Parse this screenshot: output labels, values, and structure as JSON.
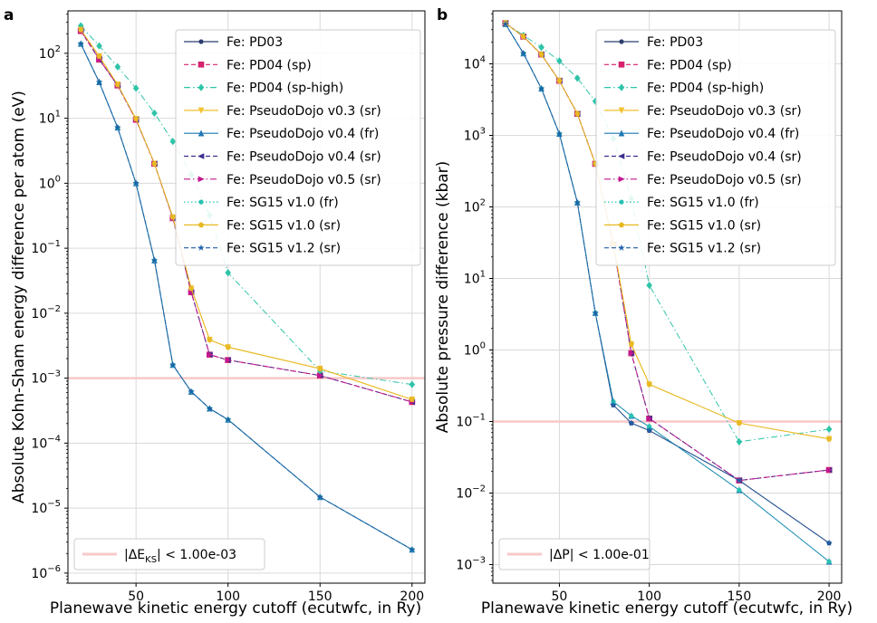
{
  "chart_data": [
    {
      "type": "line",
      "panel_letter": "a",
      "xlabel": "Planewave kinetic energy cutoff (ecutwfc, in Ry)",
      "ylabel": "Absolute Kohn-Sham energy difference per atom (eV)",
      "yscale": "log",
      "xlim": [
        13,
        207
      ],
      "ylim": [
        7e-07,
        450
      ],
      "x_ticks": [
        "50",
        "100",
        "150",
        "200"
      ],
      "y_ticks": [
        "10^-6",
        "10^-5",
        "10^-4",
        "10^-3",
        "10^-2",
        "10^-1",
        "10^0",
        "10^1",
        "10^2"
      ],
      "grid": true,
      "legend_position": "top-right",
      "threshold": {
        "value": 0.001,
        "label_pre": "|ΔE",
        "label_sub": "KS",
        "label_post": "| < 1.00e-03",
        "legend_position": "bottom-left",
        "color": "#f8c8c8"
      },
      "x": [
        20,
        30,
        40,
        50,
        60,
        70,
        80,
        90,
        100,
        150,
        200
      ],
      "series": [
        {
          "name": "Fe: PD03",
          "color": "#2c3e6e",
          "marker": "circle",
          "dash": "solid",
          "values": [
            140,
            36,
            7.2,
            1.0,
            0.065,
            0.0016,
            0.00062,
            0.00034,
            0.00023,
            1.48e-05,
            2.3e-06
          ]
        },
        {
          "name": "Fe: PD04 (sp)",
          "color": "#d6226e",
          "marker": "square",
          "dash": "dashed",
          "values": [
            220,
            80,
            32,
            9.5,
            2.0,
            0.29,
            0.021,
            0.0023,
            0.0019,
            0.0011,
            0.00043
          ]
        },
        {
          "name": "Fe: PD04 (sp-high)",
          "color": "#2ec4a8",
          "marker": "diamond",
          "dash": "dashdot",
          "values": [
            265,
            130,
            62,
            29,
            12,
            4.4,
            1.35,
            0.32,
            0.042,
            0.0013,
            0.0008
          ]
        },
        {
          "name": "Fe: PseudoDojo v0.3 (sr)",
          "color": "#f2c12e",
          "marker": "triangle-down",
          "dash": "solid",
          "values": [
            230,
            90,
            33,
            9.8,
            2.0,
            0.3,
            0.024,
            0.0039,
            0.003,
            0.0014,
            0.00047
          ]
        },
        {
          "name": "Fe: PseudoDojo v0.4 (fr)",
          "color": "#1f77b4",
          "marker": "triangle-up",
          "dash": "solid",
          "values": [
            140,
            36,
            7.2,
            1.0,
            0.065,
            0.0016,
            0.00062,
            0.00034,
            0.00023,
            1.48e-05,
            2.3e-06
          ]
        },
        {
          "name": "Fe: PseudoDojo v0.4 (sr)",
          "color": "#3b2f8f",
          "marker": "triangle-left",
          "dash": "dashed",
          "values": [
            225,
            82,
            32,
            9.6,
            2.0,
            0.29,
            0.021,
            0.0023,
            0.0019,
            0.0011,
            0.00043
          ]
        },
        {
          "name": "Fe: PseudoDojo v0.5 (sr)",
          "color": "#c2188f",
          "marker": "triangle-right",
          "dash": "dashdot",
          "values": [
            222,
            81,
            32,
            9.5,
            2.0,
            0.29,
            0.021,
            0.0023,
            0.0019,
            0.0011,
            0.00043
          ]
        },
        {
          "name": "Fe: SG15 v1.0 (fr)",
          "color": "#29c2b4",
          "marker": "circle",
          "dash": "dotted",
          "values": [
            140,
            36,
            7.2,
            1.0,
            0.065,
            0.0016,
            0.00062,
            0.00034,
            0.00023,
            1.48e-05,
            2.3e-06
          ]
        },
        {
          "name": "Fe: SG15 v1.0 (sr)",
          "color": "#e8b923",
          "marker": "pentagon",
          "dash": "solid",
          "values": [
            230,
            90,
            33,
            9.8,
            2.0,
            0.3,
            0.024,
            0.0039,
            0.003,
            0.0014,
            0.00047
          ]
        },
        {
          "name": "Fe: SG15 v1.2 (sr)",
          "color": "#1f5fa8",
          "marker": "star",
          "dash": "dashed",
          "values": [
            140,
            36,
            7.2,
            1.0,
            0.065,
            0.0016,
            0.00062,
            0.00034,
            0.00023,
            1.48e-05,
            2.3e-06
          ]
        }
      ]
    },
    {
      "type": "line",
      "panel_letter": "b",
      "xlabel": "Planewave kinetic energy cutoff (ecutwfc, in Ry)",
      "ylabel": "Absolute pressure difference (kbar)",
      "yscale": "log",
      "xlim": [
        13,
        207
      ],
      "ylim": [
        0.00055,
        55000
      ],
      "x_ticks": [
        "50",
        "100",
        "150",
        "200"
      ],
      "y_ticks": [
        "10^-3",
        "10^-2",
        "10^-1",
        "10^0",
        "10^1",
        "10^2",
        "10^3",
        "10^4"
      ],
      "grid": true,
      "legend_position": "top-right",
      "threshold": {
        "value": 0.1,
        "label_pre": "|ΔP",
        "label_sub": "",
        "label_post": "| < 1.00e-01",
        "legend_position": "bottom-left",
        "color": "#f8c8c8"
      },
      "x": [
        20,
        30,
        40,
        50,
        60,
        70,
        80,
        90,
        100,
        150,
        200
      ],
      "series": [
        {
          "name": "Fe: PD03",
          "color": "#2c3e6e",
          "marker": "circle",
          "dash": "solid",
          "values": [
            36000,
            14000,
            4500,
            1050,
            115,
            3.3,
            0.17,
            0.095,
            0.075,
            0.015,
            0.002
          ]
        },
        {
          "name": "Fe: PD04 (sp)",
          "color": "#d6226e",
          "marker": "square",
          "dash": "dashed",
          "values": [
            37000,
            24000,
            13500,
            5800,
            2000,
            400,
            30,
            0.9,
            0.11,
            0.015,
            0.021
          ]
        },
        {
          "name": "Fe: PD04 (sp-high)",
          "color": "#2ec4a8",
          "marker": "diamond",
          "dash": "dashdot",
          "values": [
            37000,
            25000,
            17000,
            11000,
            6300,
            3000,
            900,
            130,
            8,
            0.052,
            0.078
          ]
        },
        {
          "name": "Fe: PseudoDojo v0.3 (sr)",
          "color": "#f2c12e",
          "marker": "triangle-down",
          "dash": "solid",
          "values": [
            37000,
            24000,
            13500,
            5800,
            2000,
            400,
            30,
            1.2,
            0.33,
            0.095,
            0.057
          ]
        },
        {
          "name": "Fe: PseudoDojo v0.4 (fr)",
          "color": "#1f77b4",
          "marker": "triangle-up",
          "dash": "solid",
          "values": [
            36000,
            14000,
            4500,
            1050,
            115,
            3.3,
            0.19,
            0.12,
            0.085,
            0.011,
            0.0011
          ]
        },
        {
          "name": "Fe: PseudoDojo v0.4 (sr)",
          "color": "#3b2f8f",
          "marker": "triangle-left",
          "dash": "dashed",
          "values": [
            37000,
            24000,
            13500,
            5800,
            2000,
            400,
            30,
            0.9,
            0.11,
            0.015,
            0.021
          ]
        },
        {
          "name": "Fe: PseudoDojo v0.5 (sr)",
          "color": "#c2188f",
          "marker": "triangle-right",
          "dash": "dashdot",
          "values": [
            37000,
            24000,
            13500,
            5800,
            2000,
            400,
            30,
            0.9,
            0.11,
            0.015,
            0.021
          ]
        },
        {
          "name": "Fe: SG15 v1.0 (fr)",
          "color": "#29c2b4",
          "marker": "circle",
          "dash": "dotted",
          "values": [
            36000,
            14000,
            4500,
            1050,
            115,
            3.3,
            0.19,
            0.12,
            0.085,
            0.011,
            0.0011
          ]
        },
        {
          "name": "Fe: SG15 v1.0 (sr)",
          "color": "#e8b923",
          "marker": "pentagon",
          "dash": "solid",
          "values": [
            37000,
            24000,
            13500,
            5800,
            2000,
            400,
            30,
            1.2,
            0.33,
            0.095,
            0.057
          ]
        },
        {
          "name": "Fe: SG15 v1.2 (sr)",
          "color": "#1f5fa8",
          "marker": "star",
          "dash": "dashed",
          "values": [
            36000,
            14000,
            4500,
            1050,
            115,
            3.3,
            0.17,
            0.095,
            0.075,
            0.015,
            0.002
          ]
        }
      ]
    }
  ]
}
